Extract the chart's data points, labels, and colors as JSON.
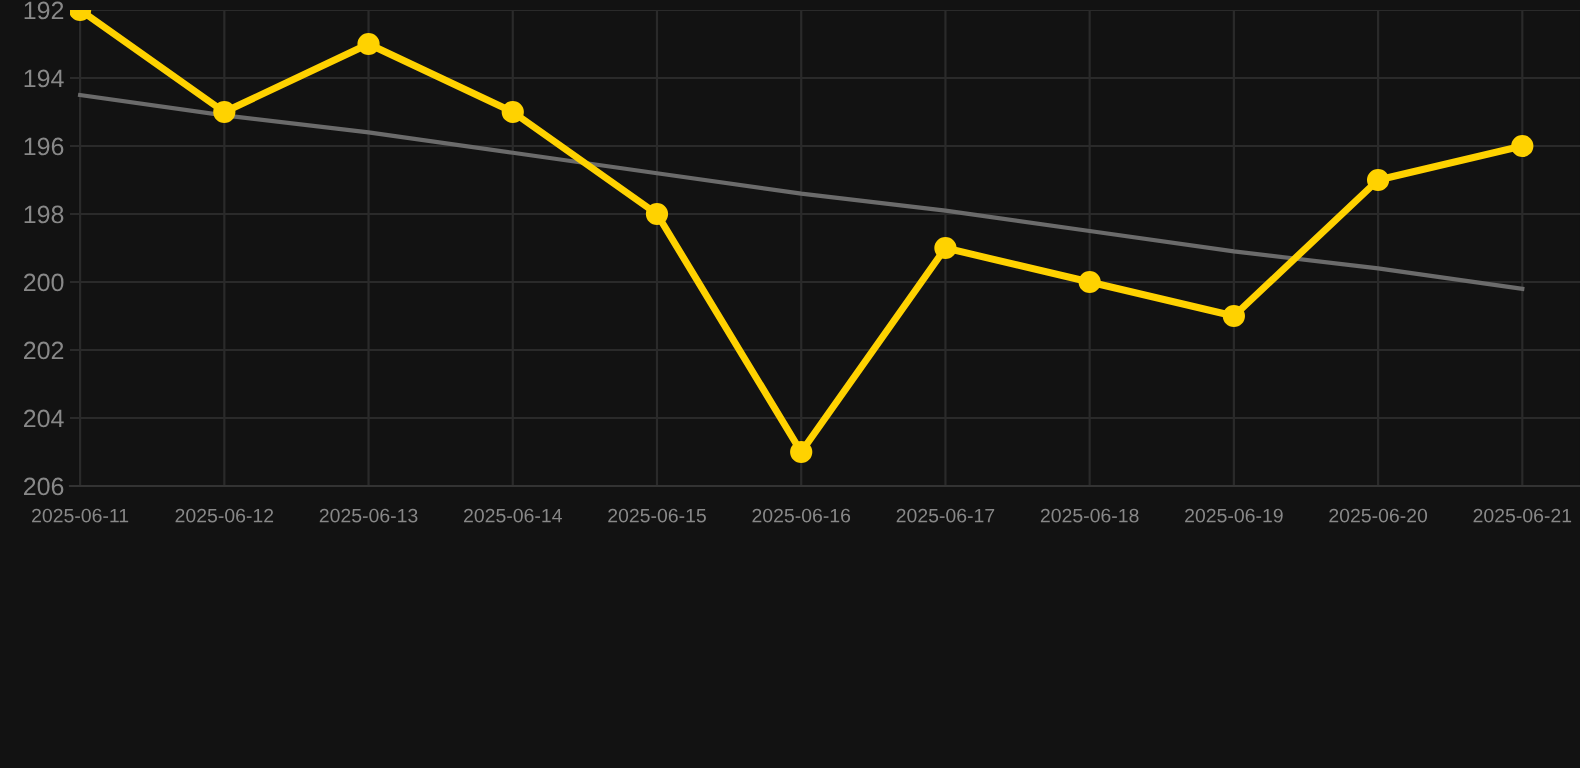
{
  "chart_data": {
    "type": "line",
    "categories": [
      "2025-06-11",
      "2025-06-12",
      "2025-06-13",
      "2025-06-14",
      "2025-06-15",
      "2025-06-16",
      "2025-06-17",
      "2025-06-18",
      "2025-06-19",
      "2025-06-20",
      "2025-06-21"
    ],
    "series": [
      {
        "color": "#ffd200",
        "marker": "circle",
        "values": [
          192,
          195,
          193,
          195,
          198,
          205,
          199,
          200,
          201,
          197,
          196
        ]
      },
      {
        "color": "#6b6b6b",
        "marker": "none",
        "values": [
          194.5,
          195.1,
          195.6,
          196.2,
          196.8,
          197.4,
          197.9,
          198.5,
          199.1,
          199.6,
          200.2
        ]
      }
    ],
    "ylim": [
      206,
      192
    ],
    "yticks": [
      192,
      194,
      196,
      198,
      200,
      202,
      204,
      206
    ],
    "grid": true,
    "legend": false
  }
}
